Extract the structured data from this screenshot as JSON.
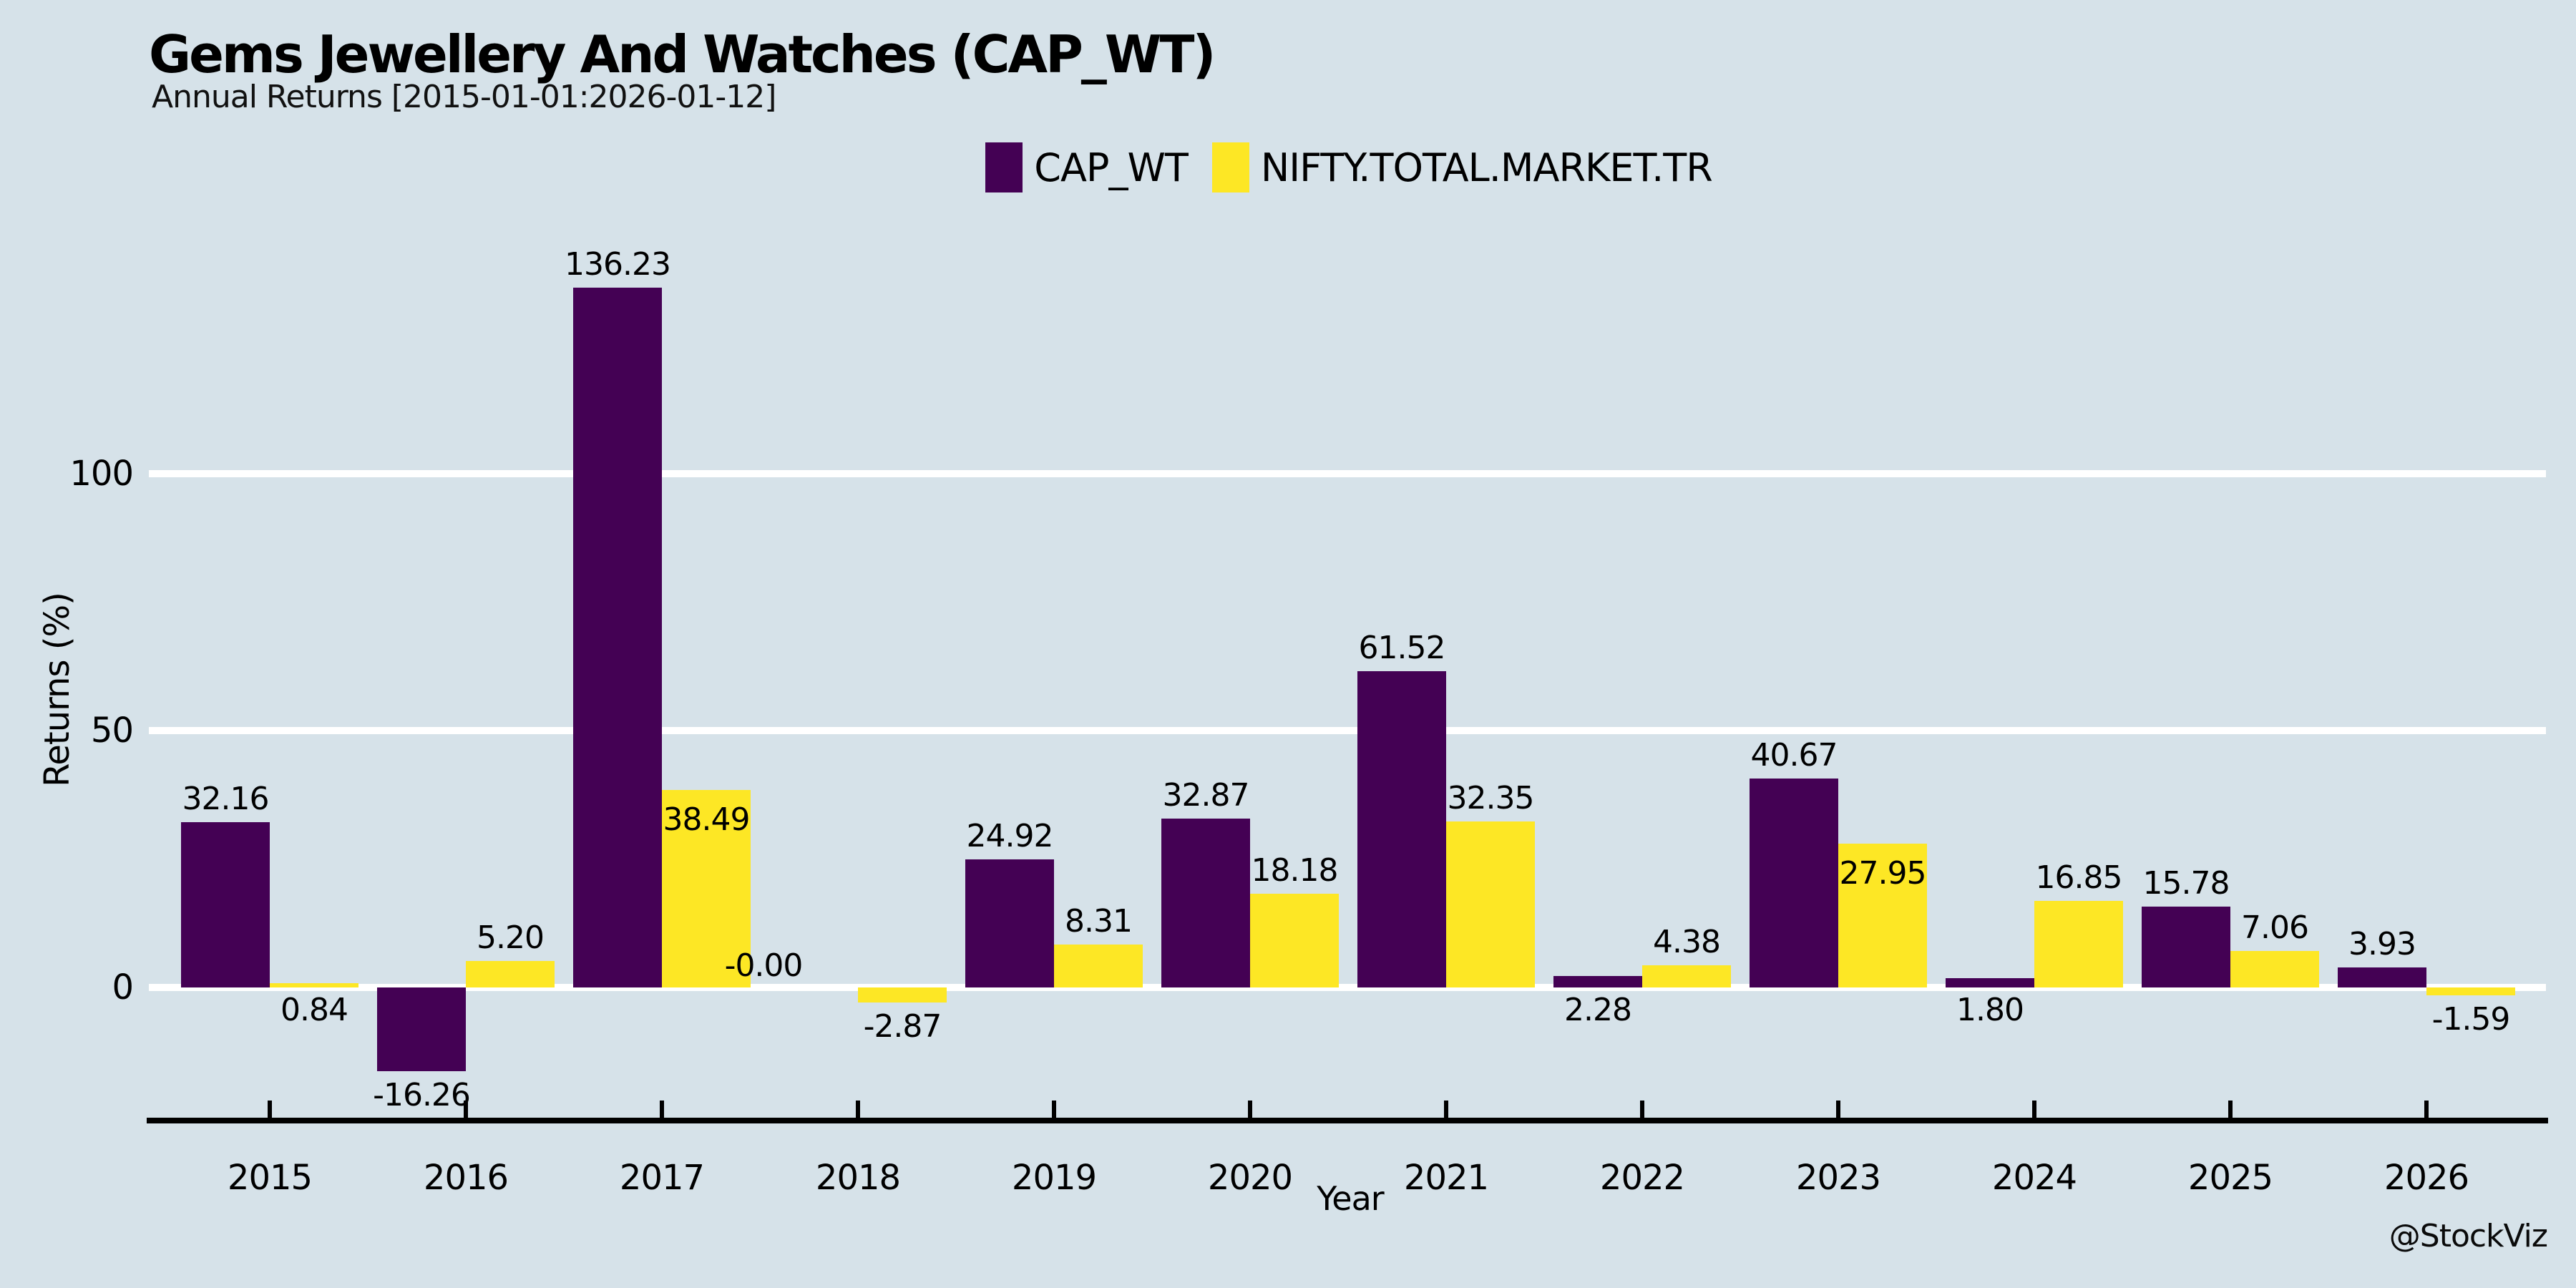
{
  "header": {
    "title": "Gems Jewellery And Watches (CAP_WT)",
    "subtitle": "Annual Returns [2015-01-01:2026-01-12]"
  },
  "legend": {
    "items": [
      {
        "label": "CAP_WT",
        "color": "#440154"
      },
      {
        "label": "NIFTY.TOTAL.MARKET.TR",
        "color": "#FDE725"
      }
    ]
  },
  "axes": {
    "x_title": "Year",
    "y_title": "Returns (%)",
    "y_tick_labels": [
      "0",
      "50",
      "100"
    ]
  },
  "footer": {
    "watermark": "@StockViz"
  },
  "colors": {
    "background": "#D6E2E9",
    "gridline": "#FFFFFF",
    "axis": "#000000",
    "cap_wt": "#440154",
    "nifty": "#FDE725"
  },
  "chart_data": {
    "type": "bar",
    "title": "Gems Jewellery And Watches (CAP_WT)",
    "subtitle": "Annual Returns [2015-01-01:2026-01-12]",
    "xlabel": "Year",
    "ylabel": "Returns (%)",
    "categories": [
      "2015",
      "2016",
      "2017",
      "2018",
      "2019",
      "2020",
      "2021",
      "2022",
      "2023",
      "2024",
      "2025",
      "2026"
    ],
    "series": [
      {
        "name": "CAP_WT",
        "color": "#440154",
        "values": [
          32.16,
          -16.26,
          136.23,
          -0.0,
          24.92,
          32.87,
          61.52,
          2.28,
          40.67,
          1.8,
          15.78,
          3.93
        ],
        "labels": [
          "32.16",
          "-16.26",
          "136.23",
          "-0.00",
          "24.92",
          "32.87",
          "61.52",
          "2.28",
          "40.67",
          "1.80",
          "15.78",
          "3.93"
        ]
      },
      {
        "name": "NIFTY.TOTAL.MARKET.TR",
        "color": "#FDE725",
        "values": [
          0.84,
          5.2,
          38.49,
          -2.87,
          8.31,
          18.18,
          32.35,
          4.38,
          27.95,
          16.85,
          7.06,
          -1.59
        ],
        "labels": [
          "0.84",
          "5.20",
          "38.49",
          "-2.87",
          "8.31",
          "18.18",
          "32.35",
          "4.38",
          "27.95",
          "16.85",
          "7.06",
          "-1.59"
        ]
      }
    ],
    "yticks": [
      0,
      50,
      100
    ],
    "ylim": [
      -26.5,
      150
    ],
    "grid": "horizontal-white",
    "legend_position": "top-center",
    "value_labels_shown": true
  }
}
